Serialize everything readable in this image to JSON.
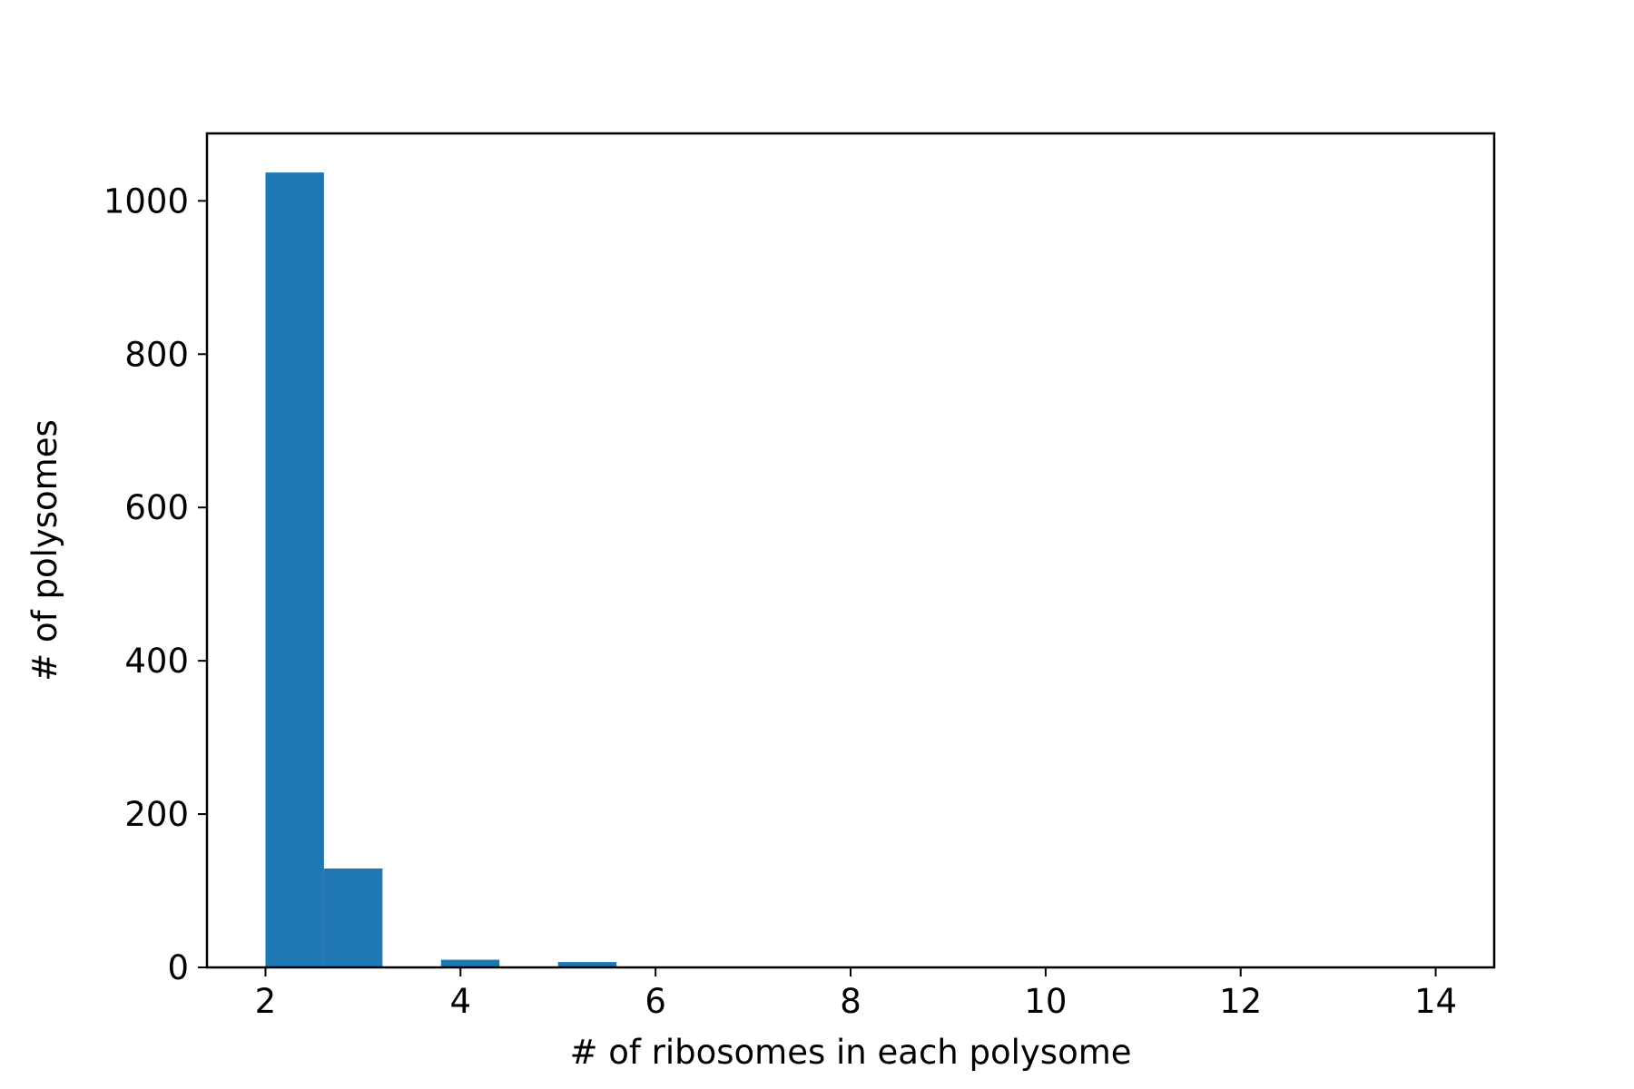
{
  "chart_data": {
    "type": "bar",
    "subtype": "histogram",
    "title": "",
    "xlabel": "# of ribosomes in each polysome",
    "ylabel": "# of polysomes",
    "xlim": [
      1.4,
      14.6
    ],
    "ylim": [
      0,
      1088
    ],
    "xticks": [
      2,
      4,
      6,
      8,
      10,
      12,
      14
    ],
    "yticks": [
      0,
      200,
      400,
      600,
      800,
      1000
    ],
    "grid": false,
    "legend": "none",
    "bar_color": "#1f77b4",
    "bins": [
      {
        "x0": 2.0,
        "x1": 2.6,
        "value": 1037
      },
      {
        "x0": 2.6,
        "x1": 3.2,
        "value": 129
      },
      {
        "x0": 3.8,
        "x1": 4.4,
        "value": 10
      },
      {
        "x0": 5.0,
        "x1": 5.6,
        "value": 7
      }
    ]
  }
}
